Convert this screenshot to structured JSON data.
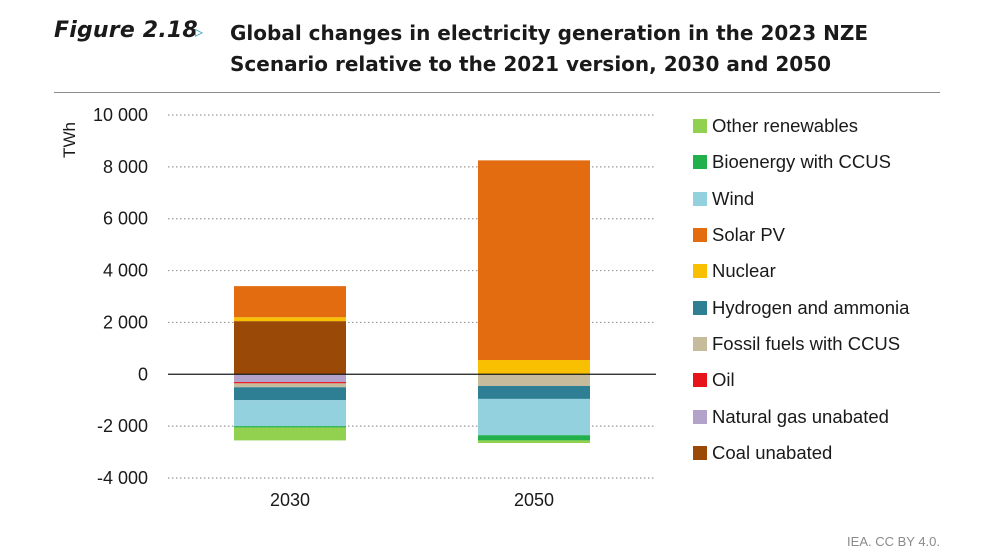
{
  "figure": {
    "label": "Figure 2.18",
    "arrow": "▹",
    "title_line1": "Global changes in electricity generation in the 2023 NZE",
    "title_line2": "Scenario relative to the 2021 version, 2030 and 2050"
  },
  "credit": "IEA. CC BY 4.0.",
  "chart_data": {
    "type": "bar",
    "stacked": true,
    "ylabel": "TWh",
    "xlabel": "",
    "ylim": [
      -4000,
      10000
    ],
    "yticks": [
      -4000,
      -2000,
      0,
      2000,
      4000,
      6000,
      8000,
      10000
    ],
    "ytick_labels": [
      "-4 000",
      "-2 000",
      "0",
      "2 000",
      "4 000",
      "6 000",
      "8 000",
      "10 000"
    ],
    "grid": "horizontal dotted",
    "legend_position": "right",
    "categories": [
      "2030",
      "2050"
    ],
    "series": [
      {
        "name": "Coal unabated",
        "color": "#9a4a06",
        "values": [
          2050,
          0
        ]
      },
      {
        "name": "Natural gas unabated",
        "color": "#b3a2c9",
        "values": [
          -300,
          0
        ]
      },
      {
        "name": "Oil",
        "color": "#e8141c",
        "values": [
          -50,
          0
        ]
      },
      {
        "name": "Fossil fuels with CCUS",
        "color": "#c6bb9b",
        "values": [
          -150,
          -450
        ]
      },
      {
        "name": "Hydrogen and ammonia",
        "color": "#2e7f94",
        "values": [
          -500,
          -500
        ]
      },
      {
        "name": "Nuclear",
        "color": "#f8c000",
        "values": [
          150,
          550
        ]
      },
      {
        "name": "Solar PV",
        "color": "#e26c0f",
        "values": [
          1200,
          7700
        ]
      },
      {
        "name": "Wind",
        "color": "#93d1de",
        "values": [
          -1000,
          -1400
        ]
      },
      {
        "name": "Bioenergy with CCUS",
        "color": "#21b04b",
        "values": [
          -50,
          -200
        ]
      },
      {
        "name": "Other renewables",
        "color": "#92d050",
        "values": [
          -500,
          -100
        ]
      }
    ]
  },
  "legend_order": [
    "Other renewables",
    "Bioenergy with CCUS",
    "Wind",
    "Solar PV",
    "Nuclear",
    "Hydrogen and ammonia",
    "Fossil fuels with CCUS",
    "Oil",
    "Natural gas unabated",
    "Coal unabated"
  ]
}
